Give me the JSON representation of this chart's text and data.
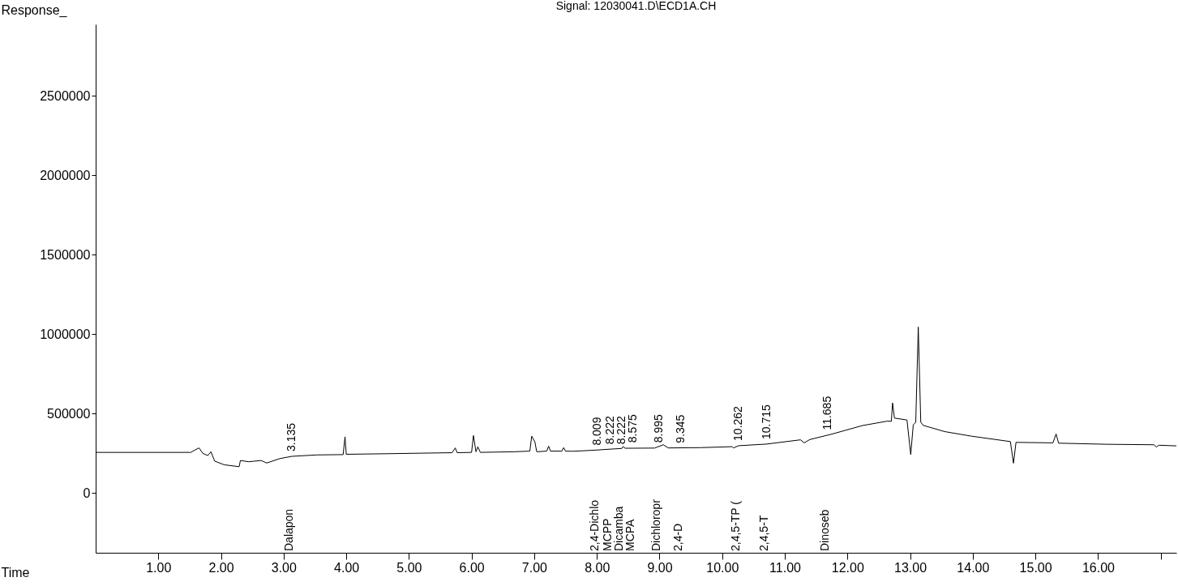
{
  "chart_data": {
    "type": "line",
    "title": "Signal: 12030041.D\\ECD1A.CH",
    "xlabel": "Time",
    "ylabel": "Response_",
    "x": [
      0,
      1.5,
      1.51,
      1.58,
      1.65,
      1.71,
      1.79,
      1.84,
      1.9,
      2.05,
      2.29,
      2.31,
      2.44,
      2.64,
      2.73,
      2.94,
      3.13,
      3.53,
      3.95,
      3.98,
      4.0,
      4.71,
      5.69,
      5.74,
      5.77,
      6.0,
      6.03,
      6.07,
      6.1,
      6.14,
      6.68,
      6.93,
      6.96,
      7.01,
      7.04,
      7.2,
      7.23,
      7.26,
      7.44,
      7.47,
      7.5,
      7.62,
      7.92,
      8.4,
      8.42,
      8.45,
      8.92,
      9.06,
      9.14,
      9.66,
      10.16,
      10.18,
      10.26,
      10.7,
      11.25,
      11.31,
      11.4,
      11.75,
      12.24,
      12.64,
      12.7,
      12.72,
      12.75,
      12.95,
      13.01,
      13.05,
      13.09,
      13.13,
      13.17,
      13.21,
      13.55,
      13.98,
      14.6,
      14.65,
      14.69,
      15.28,
      15.33,
      15.37,
      16.14,
      16.89,
      16.93,
      16.97,
      17.25
    ],
    "series": [
      {
        "color": "#000000",
        "values": [
          255000,
          255000,
          253000,
          269000,
          283000,
          249000,
          235000,
          259000,
          200000,
          177000,
          165000,
          204000,
          196000,
          204000,
          188000,
          216000,
          230000,
          239000,
          241000,
          353000,
          243000,
          247000,
          253000,
          283000,
          253000,
          255000,
          361000,
          259000,
          290000,
          255000,
          259000,
          263000,
          357000,
          322000,
          259000,
          263000,
          294000,
          263000,
          263000,
          285000,
          263000,
          262000,
          268000,
          280000,
          292000,
          281000,
          282000,
          303000,
          283000,
          285000,
          291000,
          283000,
          297000,
          307000,
          334000,
          315000,
          336000,
          370000,
          424000,
          452000,
          450000,
          566000,
          471000,
          459000,
          241000,
          428000,
          445000,
          1044000,
          445000,
          425000,
          386000,
          357000,
          323000,
          187000,
          318000,
          315000,
          371000,
          313000,
          306000,
          303000,
          289000,
          300000,
          296000
        ]
      }
    ],
    "xlim": [
      0,
      17.25
    ],
    "ylim": [
      -377000,
      2950000
    ],
    "xticks": [
      {
        "value": 1,
        "label": "1.00"
      },
      {
        "value": 2,
        "label": "2.00"
      },
      {
        "value": 3,
        "label": "3.00"
      },
      {
        "value": 4,
        "label": "4.00"
      },
      {
        "value": 5,
        "label": "5.00"
      },
      {
        "value": 6,
        "label": "6.00"
      },
      {
        "value": 7,
        "label": "7.00"
      },
      {
        "value": 8,
        "label": "8.00"
      },
      {
        "value": 9,
        "label": "9.00"
      },
      {
        "value": 10,
        "label": "10.00"
      },
      {
        "value": 11,
        "label": "11.00"
      },
      {
        "value": 12,
        "label": "12.00"
      },
      {
        "value": 13,
        "label": "13.00"
      },
      {
        "value": 14,
        "label": "14.00"
      },
      {
        "value": 15,
        "label": "15.00"
      },
      {
        "value": 16,
        "label": "16.00"
      },
      {
        "value": 17,
        "label": null
      }
    ],
    "yticks": [
      0,
      500000,
      1000000,
      1500000,
      2000000,
      2500000
    ],
    "annotations": [
      {
        "text": "3.135",
        "x": 3.135,
        "y": 230000
      },
      {
        "text": "8.009",
        "x": 8.009,
        "y": 268000
      },
      {
        "text": "8.222",
        "x": 8.222,
        "y": 275000
      },
      {
        "text": "8.222",
        "x": 8.222,
        "y": 275000
      },
      {
        "text": "8.575",
        "x": 8.575,
        "y": 285000
      },
      {
        "text": "8.995",
        "x": 8.995,
        "y": 285000
      },
      {
        "text": "9.345",
        "x": 9.345,
        "y": 283000
      },
      {
        "text": "10.262",
        "x": 10.262,
        "y": 297000
      },
      {
        "text": "10.715",
        "x": 10.715,
        "y": 307000
      },
      {
        "text": "11.685",
        "x": 11.685,
        "y": 365000
      },
      "Dalapon",
      "2,4-Dichlo",
      "MCPP",
      "Dicamba",
      "MCPA",
      "Dichloropr",
      "2,4-D",
      "2,4,5-TP (",
      "2,4,5-T",
      "Dinoseb"
    ],
    "grid": false,
    "marker": "none",
    "line_style": "solid"
  }
}
